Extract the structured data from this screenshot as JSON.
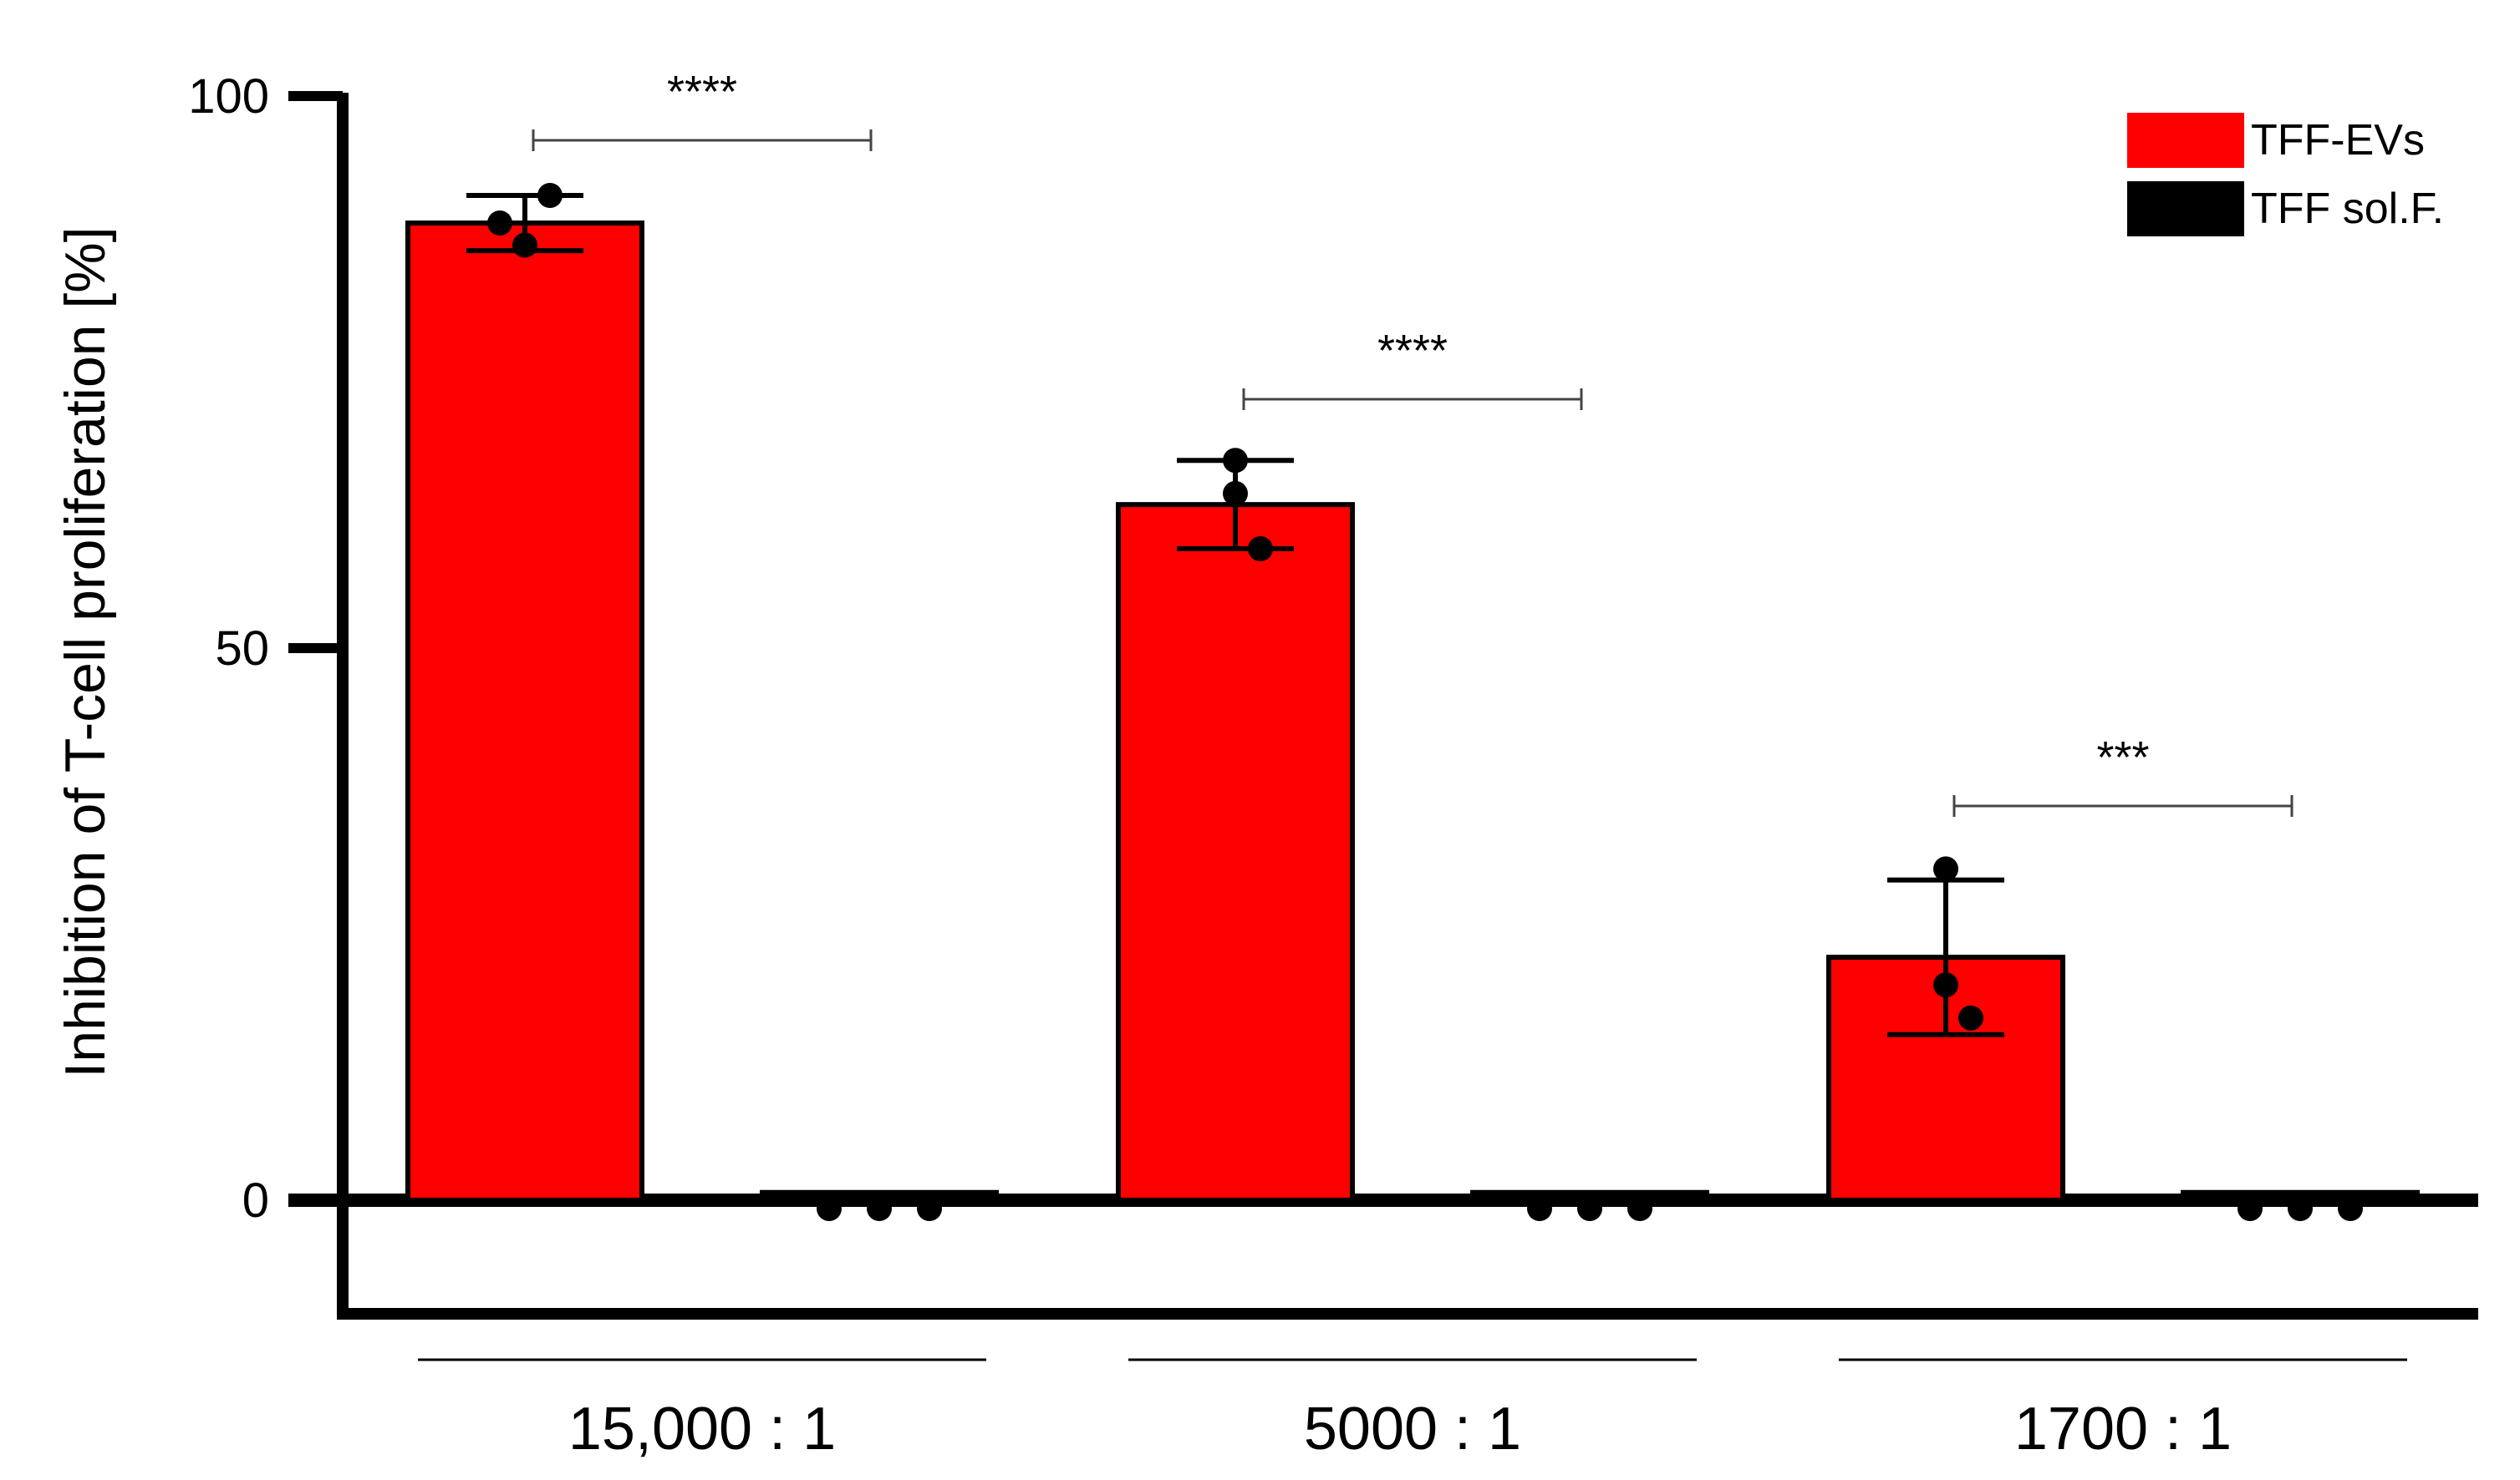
{
  "chart_data": {
    "type": "bar",
    "ylabel": "Inhibition of T-cell proliferation [%]",
    "ylim": [
      -10,
      100
    ],
    "yticks": [
      0,
      50,
      100
    ],
    "categories": [
      "15,000 : 1",
      "5000 : 1",
      "1700 : 1"
    ],
    "series": [
      {
        "name": "TFF-EVs",
        "color": "#ff0000",
        "values": [
          88.5,
          63,
          22
        ],
        "errors": [
          2.5,
          4,
          7
        ],
        "points": [
          [
            88.5,
            86.5,
            91
          ],
          [
            67,
            64,
            59
          ],
          [
            30,
            19.5,
            16.5
          ]
        ]
      },
      {
        "name": "TFF sol.F.",
        "color": "#000000",
        "values": [
          0.7,
          0.7,
          0.7
        ],
        "errors": [
          0,
          0,
          0
        ],
        "points": [
          [
            0,
            0,
            0
          ],
          [
            0,
            0,
            0
          ],
          [
            0,
            0,
            0
          ]
        ]
      }
    ],
    "significance": [
      "****",
      "****",
      "***"
    ],
    "legend_position": "top-right",
    "grid": false
  }
}
